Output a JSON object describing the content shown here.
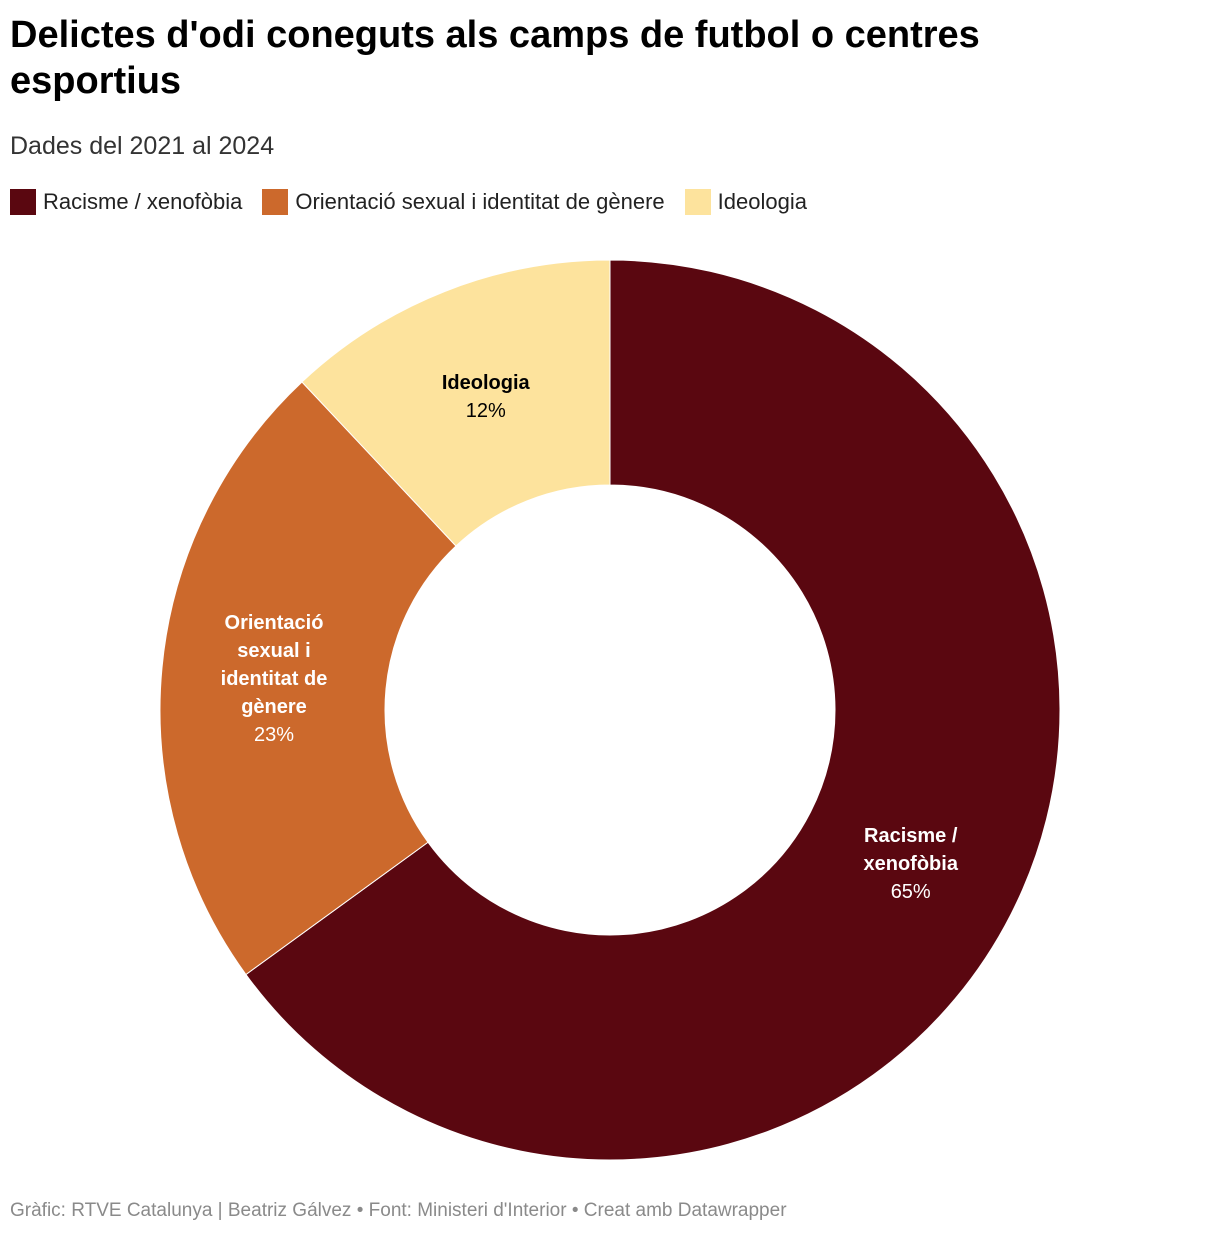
{
  "colors": {
    "racisme": "#5a0710",
    "orientacio": "#cc692c",
    "ideologia": "#fde39d"
  },
  "header": {
    "title": "Delictes d'odi coneguts als camps de futbol o centres esportius",
    "subtitle": "Dades del 2021 al 2024"
  },
  "chart_data": {
    "type": "pie",
    "variant": "donut",
    "title": "Delictes d'odi coneguts als camps de futbol o centres esportius",
    "subtitle": "Dades del 2021 al 2024",
    "categories": [
      "Racisme / xenofòbia",
      "Orientació sexual i identitat de gènere",
      "Ideologia"
    ],
    "values": [
      65,
      23,
      12
    ],
    "unit": "%",
    "legend_placement": "top-left",
    "slices": [
      {
        "name": "Racisme / xenofòbia",
        "value": 65,
        "value_label": "65%",
        "label_lines": [
          "Racisme /",
          "xenofòbia"
        ],
        "color": "#5a0710",
        "text_color": "#ffffff"
      },
      {
        "name": "Orientació sexual i identitat de gènere",
        "value": 23,
        "value_label": "23%",
        "label_lines": [
          "Orientació",
          "sexual i",
          "identitat de",
          "gènere"
        ],
        "color": "#cc692c",
        "text_color": "#ffffff"
      },
      {
        "name": "Ideologia",
        "value": 12,
        "value_label": "12%",
        "label_lines": [
          "Ideologia"
        ],
        "color": "#fde39d",
        "text_color": "#000000"
      }
    ]
  },
  "legend": [
    {
      "label": "Racisme / xenofòbia",
      "color": "#5a0710"
    },
    {
      "label": "Orientació sexual i identitat de gènere",
      "color": "#cc692c"
    },
    {
      "label": "Ideologia",
      "color": "#fde39d"
    }
  ],
  "footer": {
    "text": "Gràfic: RTVE Catalunya | Beatriz Gálvez • Font: Ministeri d'Interior • Creat amb Datawrapper"
  }
}
